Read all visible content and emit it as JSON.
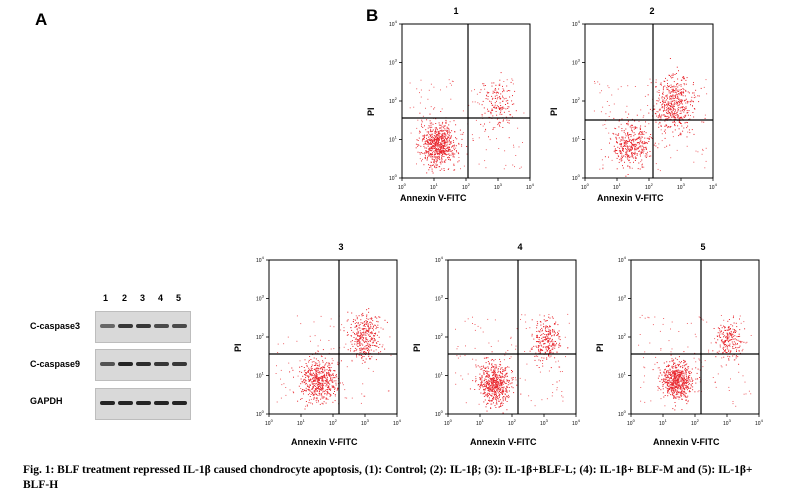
{
  "figure": {
    "panel_a_label": "A",
    "panel_b_label": "B",
    "caption": "Fig. 1: BLF treatment repressed IL-1β caused chondrocyte apoptosis, (1): Control; (2): IL-1β; (3): IL-1β+BLF-L; (4): IL-1β+ BLF-M and (5): IL-1β+ BLF-H"
  },
  "western_blot": {
    "lanes": [
      "1",
      "2",
      "3",
      "4",
      "5"
    ],
    "rows": [
      {
        "label": "C-caspase3",
        "intensity": [
          0.6,
          0.85,
          0.85,
          0.75,
          0.75
        ]
      },
      {
        "label": "C-caspase9",
        "intensity": [
          0.7,
          0.95,
          0.9,
          0.85,
          0.85
        ]
      },
      {
        "label": "GAPDH",
        "intensity": [
          0.95,
          0.95,
          0.95,
          0.95,
          0.95
        ]
      }
    ]
  },
  "flow_plots": {
    "x_label": "Annexin V-FITC",
    "y_label": "PI",
    "tick_labels": [
      "0",
      "1",
      "2",
      "3",
      "4"
    ],
    "panels": [
      {
        "number": "1",
        "color": "#e8262d"
      },
      {
        "number": "2",
        "color": "#e8262d"
      },
      {
        "number": "3",
        "color": "#e8262d"
      },
      {
        "number": "4",
        "color": "#e8262d"
      },
      {
        "number": "5",
        "color": "#e8262d"
      }
    ]
  }
}
